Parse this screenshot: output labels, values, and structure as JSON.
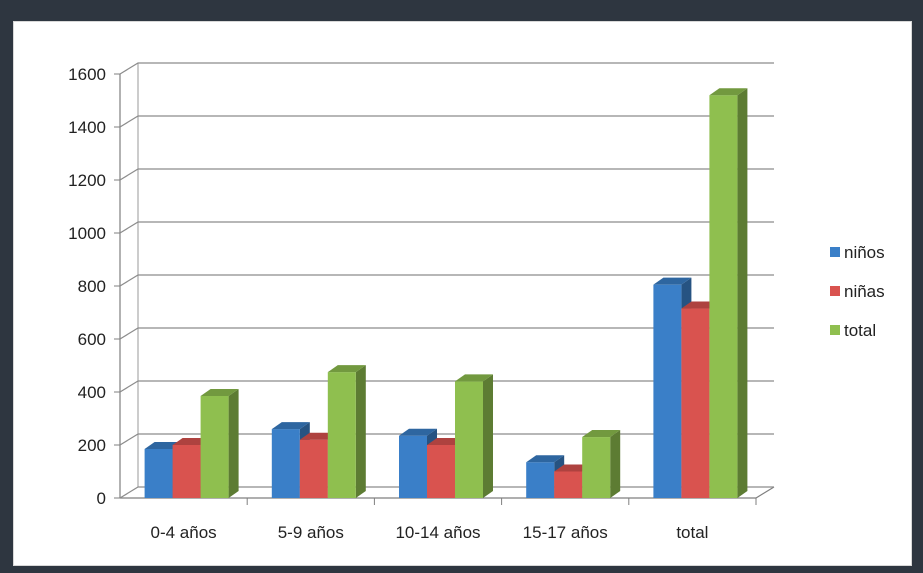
{
  "chart_data": {
    "type": "bar",
    "categories": [
      "0-4 años",
      "5-9 años",
      "10-14 años",
      "15-17 años",
      "total"
    ],
    "series": [
      {
        "name": "niños",
        "values": [
          185,
          260,
          235,
          135,
          805
        ],
        "color": "#3a7fc8"
      },
      {
        "name": "niñas",
        "values": [
          200,
          220,
          200,
          100,
          715
        ],
        "color": "#d9534f"
      },
      {
        "name": "total",
        "values": [
          385,
          475,
          440,
          230,
          1520
        ],
        "color": "#8fbf4f"
      }
    ],
    "ylim": [
      0,
      1600
    ],
    "yticks": [
      0,
      200,
      400,
      600,
      800,
      1000,
      1200,
      1400,
      1600
    ],
    "grid": true,
    "style": "3d-clustered-column",
    "legend_position": "right"
  }
}
